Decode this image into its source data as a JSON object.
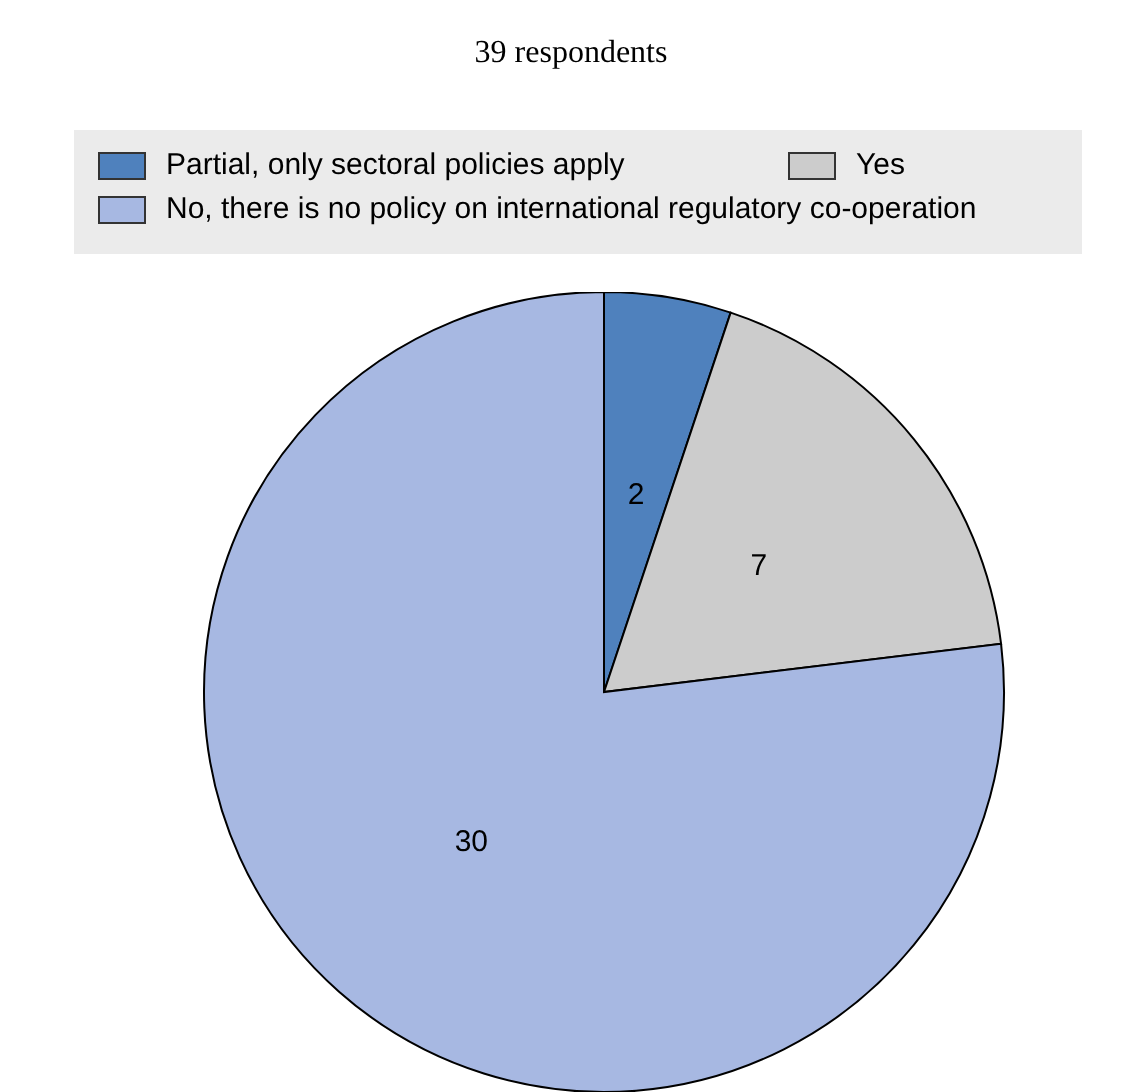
{
  "chart_data": {
    "type": "pie",
    "title": "39 respondents",
    "categories": [
      "Partial, only sectoral policies apply",
      "Yes",
      "No, there is no policy on international regulatory co-operation"
    ],
    "values": [
      2,
      7,
      30
    ],
    "colors": [
      "#4f81bd",
      "#cccccc",
      "#a7b8e2"
    ],
    "data_labels": true,
    "legend": "top"
  }
}
